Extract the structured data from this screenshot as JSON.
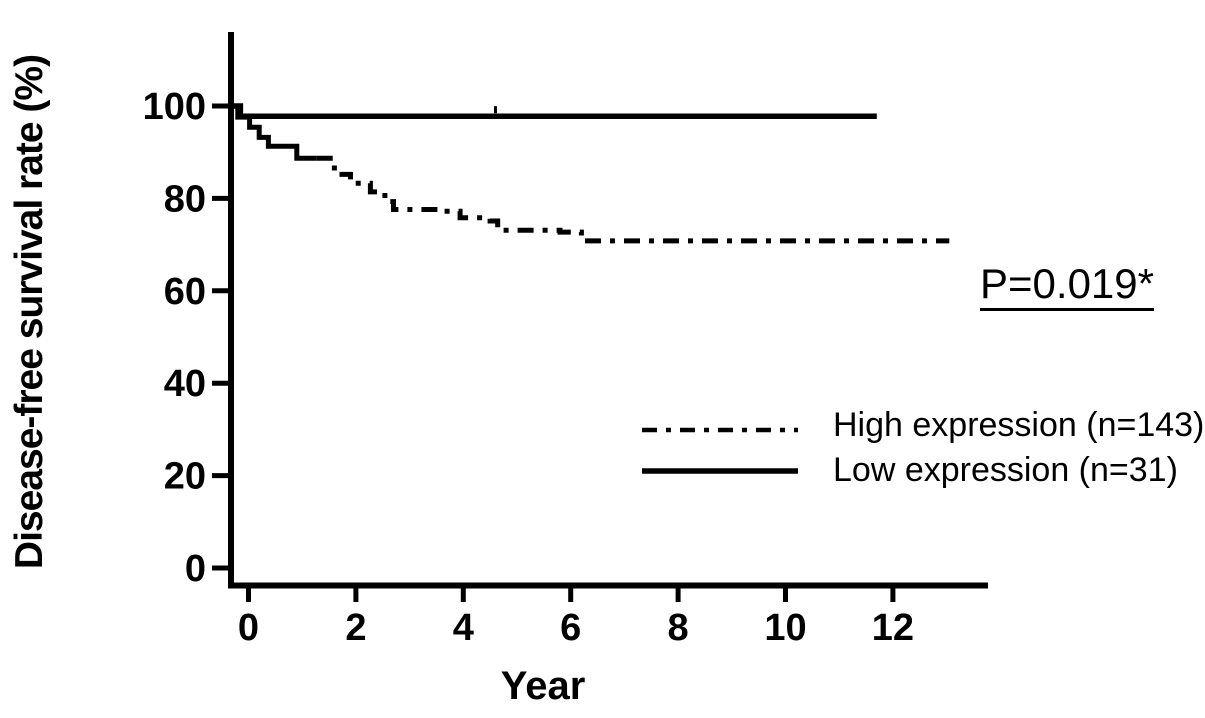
{
  "figure": {
    "background_color": "#ffffff",
    "ink_color": "#000000"
  },
  "chart_data": {
    "type": "line",
    "subtype": "kaplan-meier-step-curve",
    "title": "",
    "xlabel": "Year",
    "ylabel": "Disease-free survival rate (%)",
    "x_tick_labels": [
      "0",
      "2",
      "4",
      "6",
      "8",
      "10",
      "12"
    ],
    "y_tick_labels": [
      "0",
      "20",
      "40",
      "60",
      "80",
      "100"
    ],
    "x_tick_values": [
      0,
      2,
      4,
      6,
      8,
      10,
      12
    ],
    "y_tick_values": [
      0,
      20,
      40,
      60,
      80,
      100
    ],
    "xlim": [
      -0.38,
      13.77
    ],
    "ylim": [
      0,
      116
    ],
    "grid": false,
    "legend_position": "lower-right",
    "annotation": {
      "text": "P=0.019*",
      "underline": true
    },
    "series": [
      {
        "name": "High expression (n=143)",
        "line_style": "dash-dot",
        "color": "#000000",
        "solid_until_year": 1.27,
        "steps_year_percent": [
          [
            -0.36,
            100
          ],
          [
            -0.2,
            97.6
          ],
          [
            0.02,
            95.4
          ],
          [
            0.2,
            93.2
          ],
          [
            0.37,
            91.3
          ],
          [
            0.9,
            88.7
          ],
          [
            1.6,
            85.2
          ],
          [
            1.9,
            83.3
          ],
          [
            2.27,
            81.4
          ],
          [
            2.54,
            79.3
          ],
          [
            2.7,
            77.6
          ],
          [
            3.6,
            77.2
          ],
          [
            3.94,
            75.8
          ],
          [
            4.5,
            75.1
          ],
          [
            4.64,
            73.1
          ],
          [
            5.8,
            72.7
          ],
          [
            6.2,
            70.8
          ],
          [
            13.05,
            70.8
          ]
        ]
      },
      {
        "name": "Low expression (n=31)",
        "line_style": "solid",
        "color": "#000000",
        "censor_marks_year": [
          4.6
        ],
        "steps_year_percent": [
          [
            -0.36,
            100
          ],
          [
            -0.15,
            97.8
          ],
          [
            11.7,
            97.8
          ]
        ]
      }
    ]
  }
}
